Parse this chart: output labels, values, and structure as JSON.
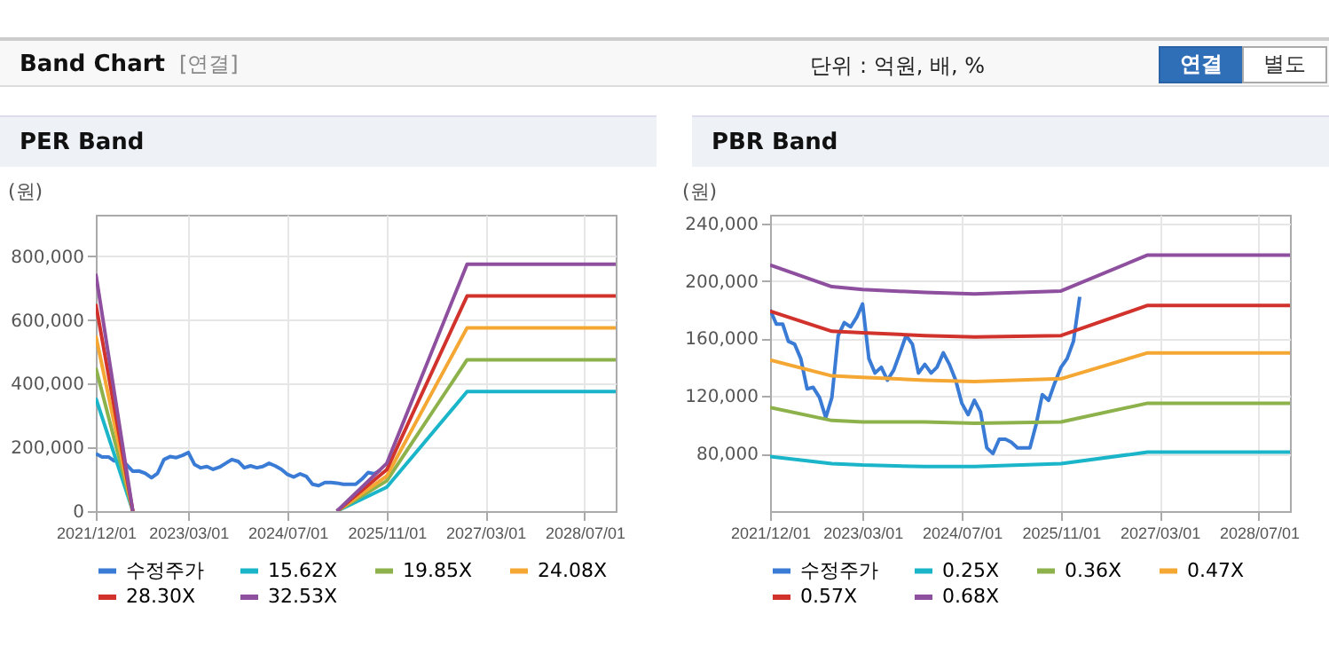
{
  "chart_data": [
    {
      "type": "other",
      "title": "Band Chart",
      "annotations": [
        "[연결]",
        "단위 : 억원, 배, %",
        "연결",
        "별도"
      ]
    },
    {
      "type": "line",
      "title": "PER Band",
      "ylabel": "(원)",
      "xlim": [
        "2021-12-01",
        "2028-12-01"
      ],
      "ylim": [
        0,
        930000
      ],
      "xticks": [
        {
          "value": "2021-12-01",
          "label": "2021/12/01"
        },
        {
          "value": "2023-03-01",
          "label": "2023/03/01"
        },
        {
          "value": "2024-07-01",
          "label": "2024/07/01"
        },
        {
          "value": "2025-11-01",
          "label": "2025/11/01"
        },
        {
          "value": "2027-03-01",
          "label": "2027/03/01"
        },
        {
          "value": "2028-07-01",
          "label": "2028/07/01"
        }
      ],
      "yticks": [
        0,
        {
          "value": 200000,
          "label": "200,000"
        },
        {
          "value": 400000,
          "label": "400,000"
        },
        {
          "value": 600000,
          "label": "600,000"
        },
        {
          "value": 800000,
          "label": "800,000"
        }
      ],
      "grid": true,
      "legend": "bottom",
      "line_style": "solid",
      "marker": "none",
      "series": [
        {
          "name": "수정주가",
          "color": "#3a7bd5",
          "x": [
            "2021-12",
            "2022-01",
            "2022-02",
            "2022-03",
            "2022-04",
            "2022-05",
            "2022-06",
            "2022-07",
            "2022-08",
            "2022-09",
            "2022-10",
            "2022-11",
            "2022-12",
            "2023-01",
            "2023-02",
            "2023-03",
            "2023-04",
            "2023-05",
            "2023-06",
            "2023-07",
            "2023-08",
            "2023-09",
            "2023-10",
            "2023-11",
            "2023-12",
            "2024-01",
            "2024-02",
            "2024-03",
            "2024-04",
            "2024-05",
            "2024-06",
            "2024-07",
            "2024-08",
            "2024-09",
            "2024-10",
            "2024-11",
            "2024-12",
            "2025-01",
            "2025-02",
            "2025-03",
            "2025-04",
            "2025-05",
            "2025-06",
            "2025-07",
            "2025-08",
            "2025-09",
            "2025-10"
          ],
          "values": [
            180000,
            170000,
            170000,
            158000,
            156000,
            146000,
            125000,
            126000,
            119000,
            105000,
            119000,
            162000,
            171000,
            168000,
            175000,
            184000,
            146000,
            136000,
            140000,
            131000,
            138000,
            150000,
            162000,
            156000,
            136000,
            142000,
            136000,
            140000,
            150000,
            142000,
            131000,
            115000,
            107000,
            117000,
            109000,
            84000,
            80000,
            90000,
            90000,
            88000,
            84000,
            84000,
            84000,
            100000,
            121000,
            117000,
            129000
          ]
        },
        {
          "name": "15.62X",
          "color": "#1bb5c9",
          "x": [
            "2021-12",
            "2022-06",
            "2023-06",
            "2025-03",
            "2025-11",
            "2026-12",
            "2028-12"
          ],
          "values": [
            355000,
            0,
            null,
            0,
            75000,
            375000,
            375000
          ]
        },
        {
          "name": "19.85X",
          "color": "#8db14b",
          "x": [
            "2021-12",
            "2022-06",
            "2023-06",
            "2025-03",
            "2025-11",
            "2026-12",
            "2028-12"
          ],
          "values": [
            450000,
            0,
            null,
            0,
            95000,
            475000,
            475000
          ]
        },
        {
          "name": "24.08X",
          "color": "#f5a733",
          "x": [
            "2021-12",
            "2022-06",
            "2023-06",
            "2025-03",
            "2025-11",
            "2026-12",
            "2028-12"
          ],
          "values": [
            550000,
            0,
            null,
            0,
            110000,
            575000,
            575000
          ]
        },
        {
          "name": "28.30X",
          "color": "#d1322c",
          "x": [
            "2021-12",
            "2022-06",
            "2023-06",
            "2025-03",
            "2025-11",
            "2026-12",
            "2028-12"
          ],
          "values": [
            650000,
            0,
            null,
            0,
            130000,
            675000,
            675000
          ]
        },
        {
          "name": "32.53X",
          "color": "#8e4f9f",
          "x": [
            "2021-12",
            "2022-06",
            "2023-06",
            "2025-03",
            "2025-11",
            "2026-12",
            "2028-12"
          ],
          "values": [
            745000,
            0,
            null,
            0,
            150000,
            775000,
            775000
          ]
        }
      ]
    },
    {
      "type": "line",
      "title": "PBR Band",
      "ylabel": "(원)",
      "xlim": [
        "2021-12-01",
        "2028-12-01"
      ],
      "ylim": [
        40000,
        246000
      ],
      "xticks": [
        {
          "value": "2021-12-01",
          "label": "2021/12/01"
        },
        {
          "value": "2023-03-01",
          "label": "2023/03/01"
        },
        {
          "value": "2024-07-01",
          "label": "2024/07/01"
        },
        {
          "value": "2025-11-01",
          "label": "2025/11/01"
        },
        {
          "value": "2027-03-01",
          "label": "2027/03/01"
        },
        {
          "value": "2028-07-01",
          "label": "2028/07/01"
        }
      ],
      "yticks": [
        {
          "value": 80000,
          "label": "80,000"
        },
        {
          "value": 120000,
          "label": "120,000"
        },
        {
          "value": 160000,
          "label": "160,000"
        },
        {
          "value": 200000,
          "label": "200,000"
        },
        {
          "value": 240000,
          "label": "240,000"
        }
      ],
      "grid": true,
      "legend": "bottom",
      "line_style": "solid",
      "marker": "none",
      "series": [
        {
          "name": "수정주가",
          "color": "#3a7bd5",
          "x": [
            "2021-12",
            "2022-01",
            "2022-02",
            "2022-03",
            "2022-04",
            "2022-05",
            "2022-06",
            "2022-07",
            "2022-08",
            "2022-09",
            "2022-10",
            "2022-11",
            "2022-12",
            "2023-01",
            "2023-02",
            "2023-03",
            "2023-04",
            "2023-05",
            "2023-06",
            "2023-07",
            "2023-08",
            "2023-09",
            "2023-10",
            "2023-11",
            "2023-12",
            "2024-01",
            "2024-02",
            "2024-03",
            "2024-04",
            "2024-05",
            "2024-06",
            "2024-07",
            "2024-08",
            "2024-09",
            "2024-10",
            "2024-11",
            "2024-12",
            "2025-01",
            "2025-02",
            "2025-03",
            "2025-04",
            "2025-05",
            "2025-06",
            "2025-07",
            "2025-08",
            "2025-09",
            "2025-10",
            "2025-11",
            "2025-12",
            "2026-01",
            "2026-02"
          ],
          "values": [
            180000,
            170000,
            170000,
            158000,
            156000,
            146000,
            125000,
            126000,
            119000,
            105000,
            119000,
            162000,
            171000,
            168000,
            175000,
            184000,
            146000,
            136000,
            140000,
            131000,
            138000,
            150000,
            162000,
            156000,
            136000,
            142000,
            136000,
            140000,
            150000,
            142000,
            131000,
            115000,
            107000,
            117000,
            109000,
            84000,
            80000,
            90000,
            90000,
            88000,
            84000,
            84000,
            84000,
            100000,
            121000,
            117000,
            129000,
            140000,
            146000,
            158000,
            189000
          ]
        },
        {
          "name": "0.25X",
          "color": "#1bb5c9",
          "x": [
            "2021-12",
            "2022-10",
            "2023-03",
            "2024-01",
            "2024-09",
            "2025-11",
            "2027-01",
            "2028-12"
          ],
          "values": [
            78000,
            73000,
            72000,
            71000,
            71000,
            73000,
            81000,
            81000
          ]
        },
        {
          "name": "0.36X",
          "color": "#8db14b",
          "x": [
            "2021-12",
            "2022-10",
            "2023-03",
            "2024-01",
            "2024-09",
            "2025-11",
            "2027-01",
            "2028-12"
          ],
          "values": [
            112000,
            103000,
            102000,
            102000,
            101000,
            102000,
            115000,
            115000
          ]
        },
        {
          "name": "0.47X",
          "color": "#f5a733",
          "x": [
            "2021-12",
            "2022-10",
            "2023-03",
            "2024-01",
            "2024-09",
            "2025-11",
            "2027-01",
            "2028-12"
          ],
          "values": [
            145000,
            134000,
            133000,
            131000,
            130000,
            132000,
            150000,
            150000
          ]
        },
        {
          "name": "0.57X",
          "color": "#d1322c",
          "x": [
            "2021-12",
            "2022-10",
            "2023-03",
            "2024-01",
            "2024-09",
            "2025-11",
            "2027-01",
            "2028-12"
          ],
          "values": [
            179000,
            165000,
            164000,
            162000,
            161000,
            162000,
            183000,
            183000
          ]
        },
        {
          "name": "0.68X",
          "color": "#8e4f9f",
          "x": [
            "2021-12",
            "2022-10",
            "2023-03",
            "2024-01",
            "2024-09",
            "2025-11",
            "2027-01",
            "2028-12"
          ],
          "values": [
            211000,
            196000,
            194000,
            192000,
            191000,
            193000,
            218000,
            218000
          ]
        }
      ]
    }
  ]
}
